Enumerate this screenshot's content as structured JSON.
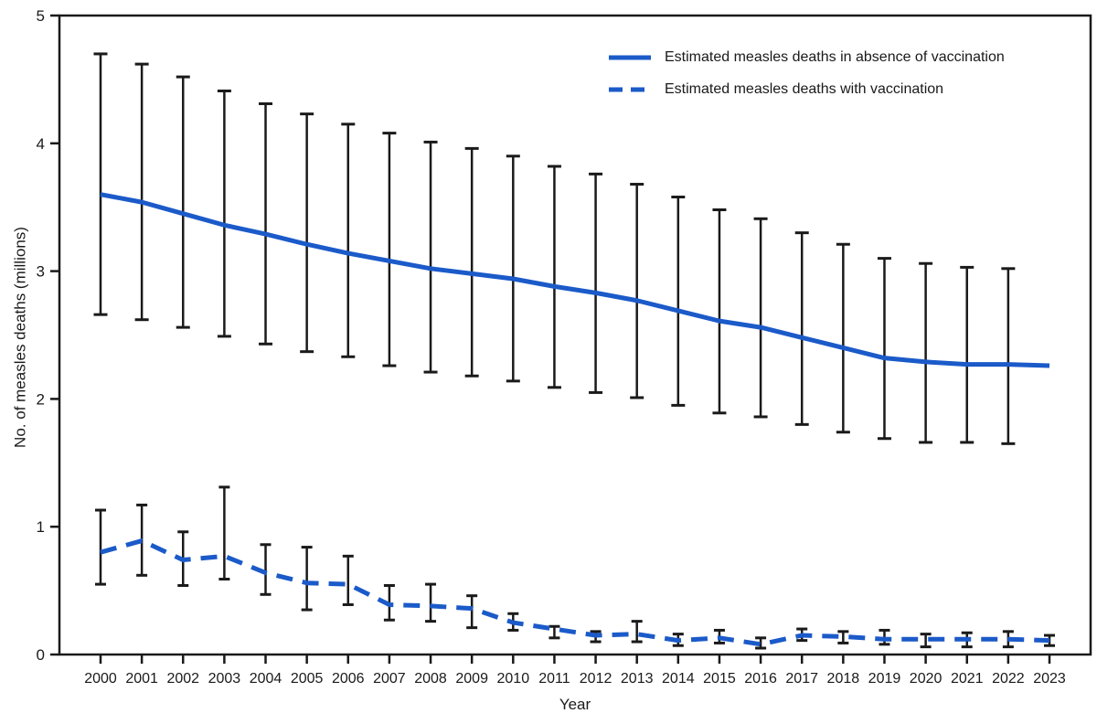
{
  "figure": {
    "xlabel": "Year",
    "ylabel": "No. of measles deaths (millions)"
  },
  "legend": {
    "items": [
      {
        "label": "Estimated measles deaths in absence of vaccination",
        "style": "solid"
      },
      {
        "label": "Estimated measles deaths with vaccination",
        "style": "dashed"
      }
    ],
    "position": "top-right-inside"
  },
  "colors": {
    "series_line": "#1b5ac9",
    "error_bar": "#1a1a1a",
    "axis": "#1a1a1a",
    "text": "#1a1a1a",
    "background": "#ffffff"
  },
  "chart_data": {
    "type": "line",
    "title": "",
    "xlabel": "Year",
    "ylabel": "No. of measles deaths (millions)",
    "x": [
      2000,
      2001,
      2002,
      2003,
      2004,
      2005,
      2006,
      2007,
      2008,
      2009,
      2010,
      2011,
      2012,
      2013,
      2014,
      2015,
      2016,
      2017,
      2018,
      2019,
      2020,
      2021,
      2022,
      2023
    ],
    "ylim": [
      0,
      5
    ],
    "yticks": [
      0,
      1,
      2,
      3,
      4,
      5
    ],
    "grid": false,
    "error_bars": true,
    "legend_position": "top-right",
    "series": [
      {
        "name": "Estimated measles deaths in absence of vaccination",
        "style": "solid",
        "values": [
          3.6,
          3.54,
          3.45,
          3.36,
          3.29,
          3.21,
          3.14,
          3.08,
          3.02,
          2.98,
          2.94,
          2.88,
          2.83,
          2.77,
          2.69,
          2.61,
          2.56,
          2.48,
          2.4,
          2.32,
          2.29,
          2.27,
          2.27,
          2.26
        ],
        "ci_low": [
          2.66,
          2.62,
          2.56,
          2.49,
          2.43,
          2.37,
          2.33,
          2.26,
          2.21,
          2.18,
          2.14,
          2.09,
          2.05,
          2.01,
          1.95,
          1.89,
          1.86,
          1.8,
          1.74,
          1.69,
          1.66,
          1.66,
          1.65,
          null
        ],
        "ci_high": [
          4.7,
          4.62,
          4.52,
          4.41,
          4.31,
          4.23,
          4.15,
          4.08,
          4.01,
          3.96,
          3.9,
          3.82,
          3.76,
          3.68,
          3.58,
          3.48,
          3.41,
          3.3,
          3.21,
          3.1,
          3.06,
          3.03,
          3.02,
          null
        ]
      },
      {
        "name": "Estimated measles deaths with vaccination",
        "style": "dashed",
        "values": [
          0.8,
          0.89,
          0.74,
          0.77,
          0.64,
          0.56,
          0.55,
          0.39,
          0.38,
          0.36,
          0.25,
          0.2,
          0.15,
          0.16,
          0.11,
          0.13,
          0.08,
          0.15,
          0.14,
          0.12,
          0.12,
          0.12,
          0.12,
          0.11
        ],
        "ci_low": [
          0.55,
          0.62,
          0.54,
          0.59,
          0.47,
          0.35,
          0.39,
          0.27,
          0.26,
          0.21,
          0.19,
          0.13,
          0.1,
          0.1,
          0.07,
          0.09,
          0.05,
          0.11,
          0.09,
          0.08,
          0.06,
          0.06,
          0.06,
          0.07
        ],
        "ci_high": [
          1.13,
          1.17,
          0.96,
          1.31,
          0.86,
          0.84,
          0.77,
          0.54,
          0.55,
          0.46,
          0.32,
          0.22,
          0.18,
          0.26,
          0.16,
          0.19,
          0.13,
          0.2,
          0.18,
          0.19,
          0.16,
          0.17,
          0.18,
          0.15
        ]
      }
    ]
  }
}
